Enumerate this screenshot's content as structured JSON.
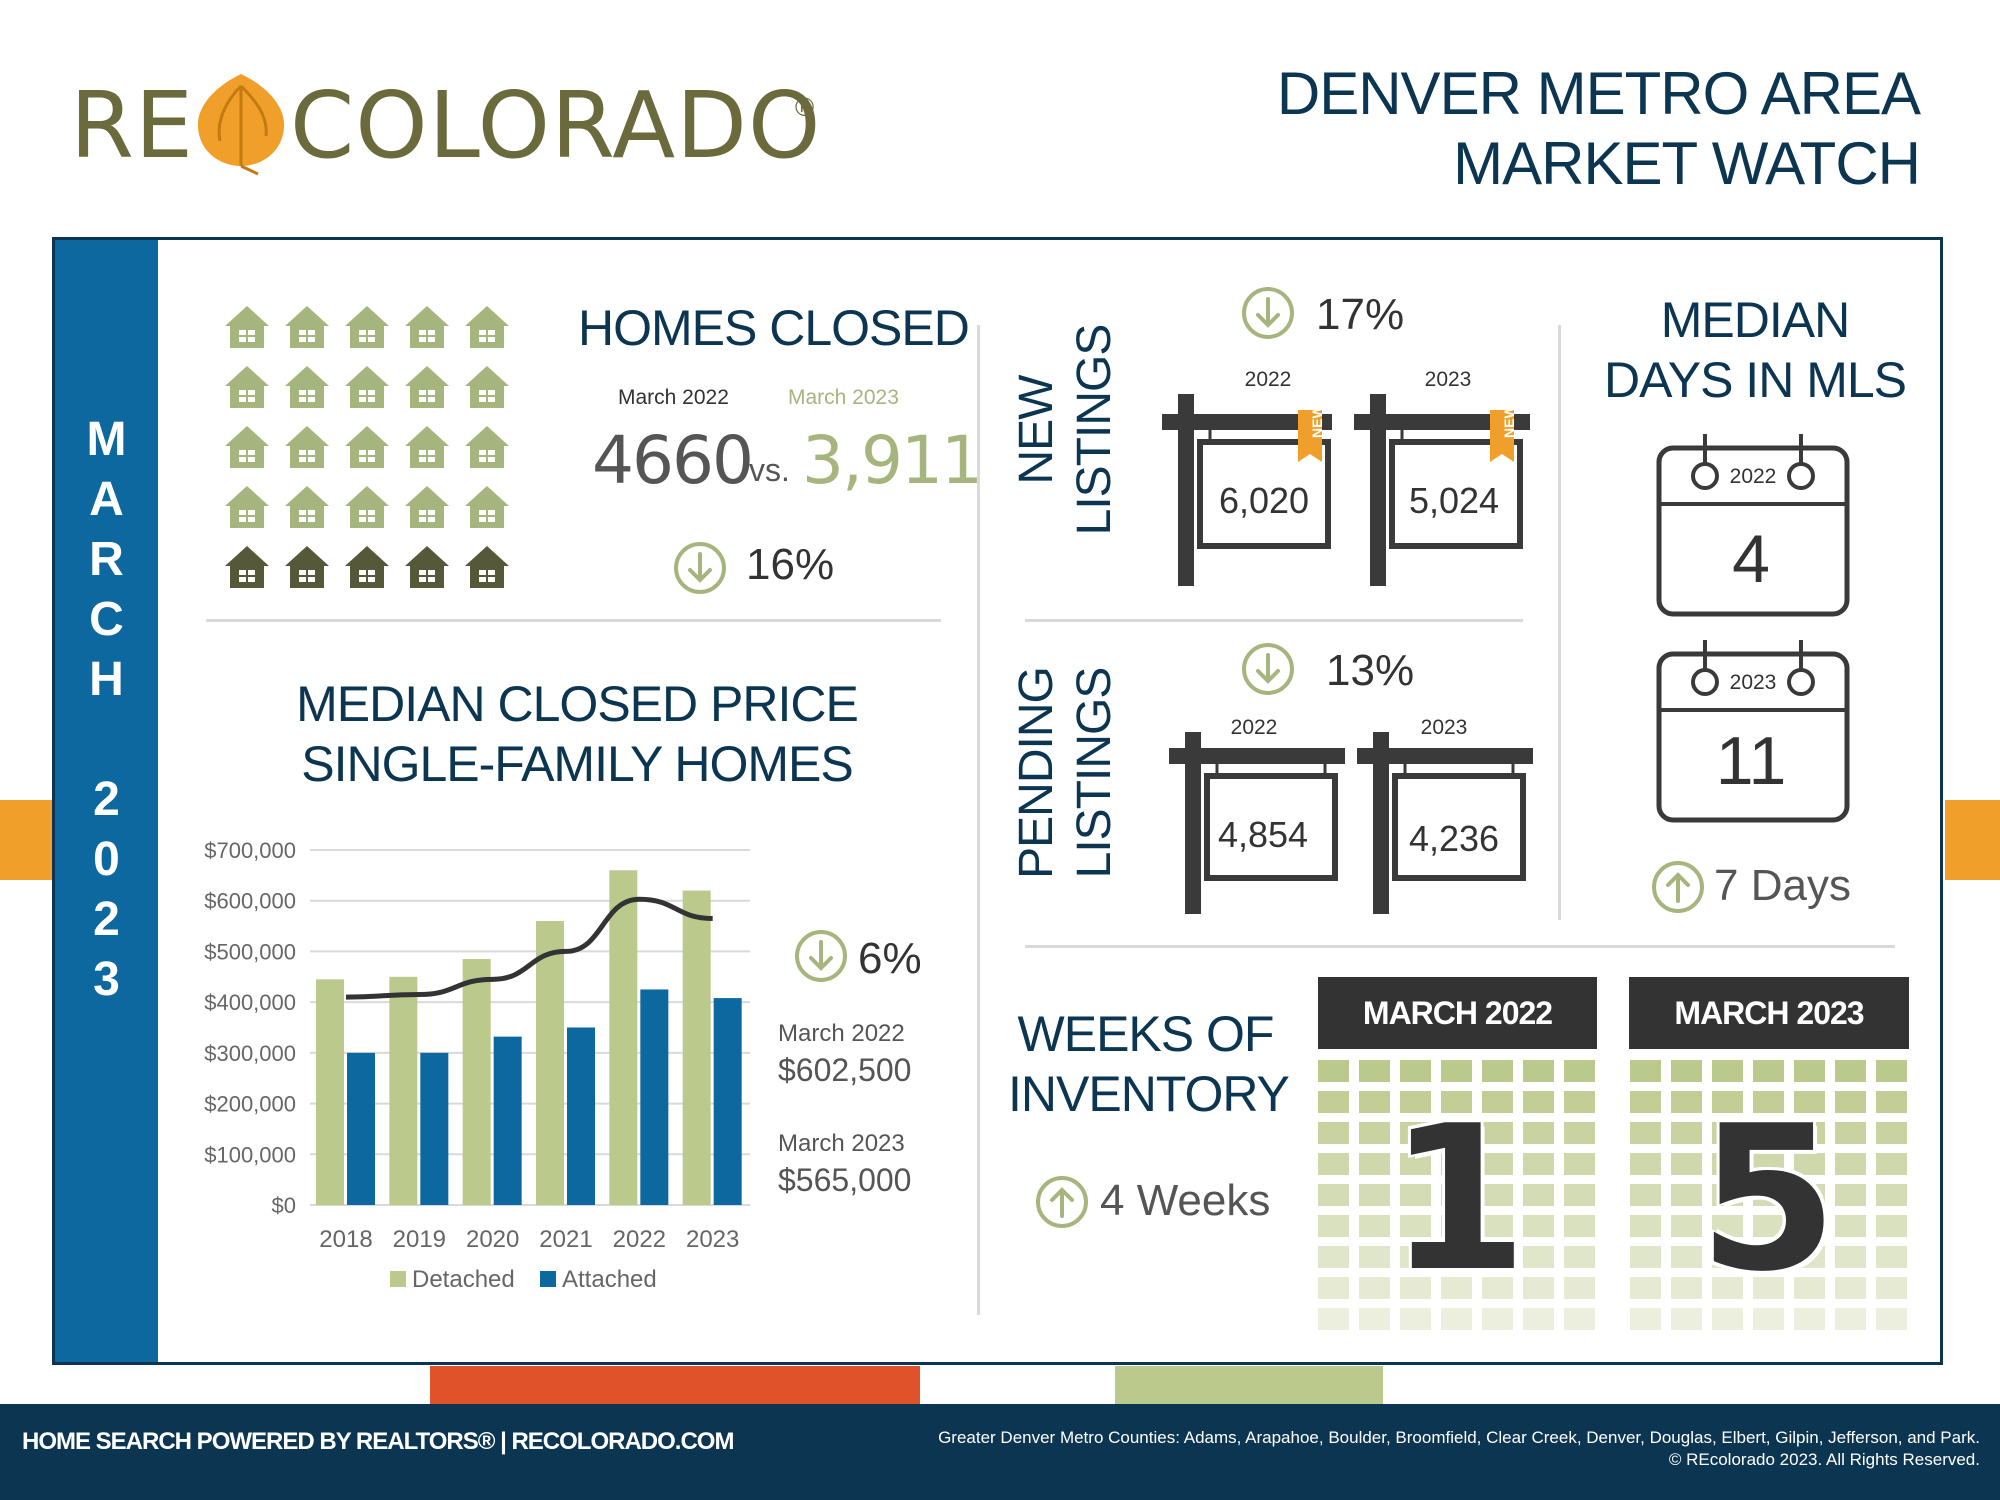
{
  "header": {
    "logo_re": "RE",
    "logo_colorado": "COLORADO",
    "logo_reg": "®",
    "title_line1": "DENVER METRO AREA",
    "title_line2": "MARKET WATCH"
  },
  "spine": {
    "month_letters": [
      "M",
      "A",
      "R",
      "C",
      "H"
    ],
    "year_digits": [
      "2",
      "0",
      "2",
      "3"
    ]
  },
  "homes_closed": {
    "title": "HOMES CLOSED",
    "label_2022": "March 2022",
    "label_2023": "March 2023",
    "value_2022": "4660",
    "vs": "vs.",
    "value_2023": "3,911",
    "change": "16%",
    "direction": "down"
  },
  "median_price": {
    "title_line1": "MEDIAN CLOSED PRICE",
    "title_line2": "SINGLE-FAMILY HOMES",
    "change": "6%",
    "direction": "down",
    "label_2022": "March 2022",
    "value_2022": "$602,500",
    "label_2023": "March 2023",
    "value_2023": "$565,000"
  },
  "chart_data": {
    "type": "bar",
    "categories": [
      "2018",
      "2019",
      "2020",
      "2021",
      "2022",
      "2023"
    ],
    "series": [
      {
        "name": "Detached",
        "values": [
          445000,
          450000,
          485000,
          560000,
          660000,
          620000
        ],
        "color": "#bcc98c"
      },
      {
        "name": "Attached",
        "values": [
          300000,
          300000,
          332000,
          350000,
          425000,
          408000
        ],
        "color": "#0d68a0"
      }
    ],
    "overlay_line": {
      "values": [
        410000,
        415000,
        445000,
        500000,
        603000,
        565000
      ],
      "color": "#333333"
    },
    "y_ticks": [
      "$0",
      "$100,000",
      "$200,000",
      "$300,000",
      "$400,000",
      "$500,000",
      "$600,000",
      "$700,000"
    ],
    "ylim": [
      0,
      700000
    ],
    "legend_position": "bottom",
    "title": "",
    "xlabel": "",
    "ylabel": ""
  },
  "new_listings": {
    "title_line1": "NEW",
    "title_line2": "LISTINGS",
    "change": "17%",
    "direction": "down",
    "year_2022": "2022",
    "year_2023": "2023",
    "value_2022": "6,020",
    "value_2023": "5,024",
    "badge": "NEW!"
  },
  "pending_listings": {
    "title_line1": "PENDING",
    "title_line2": "LISTINGS",
    "change": "13%",
    "direction": "down",
    "year_2022": "2022",
    "year_2023": "2023",
    "value_2022": "4,854",
    "value_2023": "4,236"
  },
  "days_in_mls": {
    "title_line1": "MEDIAN",
    "title_line2": "DAYS IN MLS",
    "year_2022": "2022",
    "value_2022": "4",
    "year_2023": "2023",
    "value_2023": "11",
    "change": "7 Days",
    "direction": "up"
  },
  "weeks_inventory": {
    "title_line1": "WEEKS OF",
    "title_line2": "INVENTORY",
    "change": "4 Weeks",
    "direction": "up",
    "head_2022": "MARCH 2022",
    "head_2023": "MARCH 2023",
    "value_2022": "1",
    "value_2023": "5"
  },
  "footer": {
    "left": "HOME SEARCH POWERED BY REALTORS® | RECOLORADO.COM",
    "right_line1": "Greater Denver Metro Counties: Adams, Arapahoe, Boulder, Broomfield, Clear Creek, Denver, Douglas, Elbert, Gilpin, Jefferson, and Park.",
    "right_line2": "© REcolorado 2023. All Rights Reserved."
  },
  "colors": {
    "navy": "#0b3550",
    "blue": "#0d68a0",
    "green": "#bcc98c",
    "olive": "#6a6a3c",
    "orange": "#f0a02a",
    "red_stripe": "#e0522a",
    "dark": "#333333"
  }
}
